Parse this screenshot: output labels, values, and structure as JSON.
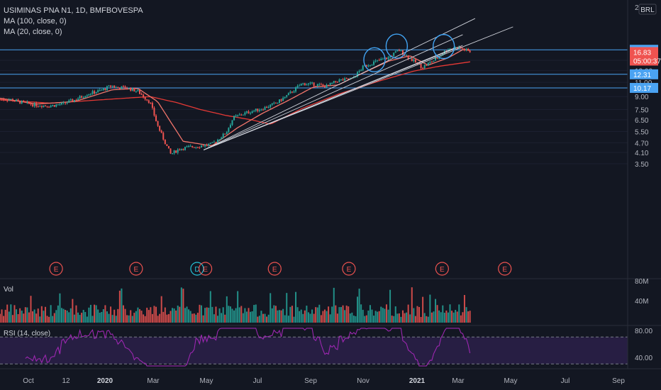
{
  "header": {
    "symbol_line": "USIMINAS PNA N1, 1D, BMFBOVESPA",
    "ma100_label": "MA (100, close, 0)",
    "ma20_label": "MA (20, close, 0)",
    "currency_badge": "BRL",
    "top_axis_label": "22"
  },
  "volume_pane": {
    "label": "Vol"
  },
  "rsi_pane": {
    "label": "RSI (14, close)"
  },
  "colors": {
    "background": "#131722",
    "up": "#26a69a",
    "down": "#ef5350",
    "ma20": "#f2756b",
    "ma100": "#e53935",
    "horizontal_line": "#4ba3f2",
    "trendline": "#d1d4dc",
    "circle": "#42a5f5",
    "rsi": "#9c27b0"
  },
  "chart_data": [
    {
      "type": "candlestick",
      "title": "USIMINAS PNA N1, 1D, BMFBOVESPA",
      "y_axis_scale": "log",
      "y_axis_ticks": [
        "15.00",
        "13.00",
        "11.00",
        "9.00",
        "7.50",
        "6.50",
        "5.50",
        "4.70",
        "4.10",
        "3.50"
      ],
      "x_axis_ticks": [
        "Oct",
        "12",
        "2020",
        "Mar",
        "May",
        "Jul",
        "Sep",
        "Nov",
        "2021",
        "Mar",
        "May",
        "Jul",
        "Sep"
      ],
      "price_badges": [
        {
          "value": "17.38",
          "kind": "horizontal-line"
        },
        {
          "value": "16.83",
          "kind": "last-price"
        },
        {
          "value": "05:00:37",
          "kind": "countdown"
        },
        {
          "value": "12.31",
          "kind": "horizontal-line"
        },
        {
          "value": "10.17",
          "kind": "horizontal-line"
        }
      ],
      "horizontal_lines": [
        17.38,
        12.31,
        10.17
      ],
      "price_path": [
        [
          "2019-09-01",
          8.7
        ],
        [
          "2019-09-15",
          8.6
        ],
        [
          "2019-10-01",
          8.2
        ],
        [
          "2019-10-15",
          8.0
        ],
        [
          "2019-11-01",
          7.9
        ],
        [
          "2019-11-15",
          8.1
        ],
        [
          "2019-12-01",
          8.6
        ],
        [
          "2019-12-15",
          9.3
        ],
        [
          "2020-01-01",
          9.8
        ],
        [
          "2020-01-15",
          10.5
        ],
        [
          "2020-01-20",
          10.2
        ],
        [
          "2020-02-01",
          10.2
        ],
        [
          "2020-02-15",
          9.7
        ],
        [
          "2020-03-01",
          8.3
        ],
        [
          "2020-03-10",
          6.0
        ],
        [
          "2020-03-20",
          4.6
        ],
        [
          "2020-03-26",
          4.0
        ],
        [
          "2020-04-05",
          4.3
        ],
        [
          "2020-04-15",
          4.4
        ],
        [
          "2020-05-01",
          4.5
        ],
        [
          "2020-05-15",
          4.6
        ],
        [
          "2020-06-01",
          5.4
        ],
        [
          "2020-06-10",
          6.7
        ],
        [
          "2020-06-20",
          7.0
        ],
        [
          "2020-07-01",
          7.3
        ],
        [
          "2020-07-15",
          7.6
        ],
        [
          "2020-08-01",
          8.2
        ],
        [
          "2020-08-15",
          9.2
        ],
        [
          "2020-09-01",
          10.8
        ],
        [
          "2020-09-15",
          10.7
        ],
        [
          "2020-10-01",
          10.4
        ],
        [
          "2020-10-15",
          11.3
        ],
        [
          "2020-11-01",
          11.5
        ],
        [
          "2020-11-15",
          13.8
        ],
        [
          "2020-12-01",
          14.8
        ],
        [
          "2020-12-15",
          15.6
        ],
        [
          "2020-12-28",
          17.3
        ],
        [
          "2021-01-10",
          15.4
        ],
        [
          "2021-01-25",
          13.6
        ],
        [
          "2021-02-10",
          15.2
        ],
        [
          "2021-02-25",
          17.6
        ],
        [
          "2021-03-10",
          18.0
        ],
        [
          "2021-03-25",
          16.8
        ]
      ],
      "ma20": [
        [
          "2019-09-01",
          8.8
        ],
        [
          "2019-10-15",
          8.1
        ],
        [
          "2019-12-01",
          8.4
        ],
        [
          "2020-01-15",
          9.9
        ],
        [
          "2020-02-15",
          10.1
        ],
        [
          "2020-03-10",
          8.4
        ],
        [
          "2020-04-10",
          4.8
        ],
        [
          "2020-05-15",
          4.5
        ],
        [
          "2020-06-15",
          5.8
        ],
        [
          "2020-07-15",
          7.1
        ],
        [
          "2020-08-15",
          8.5
        ],
        [
          "2020-09-15",
          10.3
        ],
        [
          "2020-10-15",
          10.6
        ],
        [
          "2020-11-15",
          12.6
        ],
        [
          "2020-12-15",
          14.8
        ],
        [
          "2021-01-10",
          16.0
        ],
        [
          "2021-02-01",
          14.0
        ],
        [
          "2021-02-25",
          15.5
        ],
        [
          "2021-03-15",
          17.4
        ],
        [
          "2021-03-25",
          17.3
        ]
      ],
      "ma100": [
        [
          "2019-09-01",
          8.6
        ],
        [
          "2019-11-01",
          8.2
        ],
        [
          "2020-01-01",
          8.6
        ],
        [
          "2020-03-01",
          9.0
        ],
        [
          "2020-04-01",
          8.3
        ],
        [
          "2020-05-01",
          7.5
        ],
        [
          "2020-06-01",
          6.9
        ],
        [
          "2020-07-01",
          6.5
        ],
        [
          "2020-07-25",
          6.1
        ],
        [
          "2020-09-01",
          7.6
        ],
        [
          "2020-10-15",
          9.3
        ],
        [
          "2020-12-01",
          11.1
        ],
        [
          "2021-01-15",
          12.9
        ],
        [
          "2021-02-15",
          13.8
        ],
        [
          "2021-03-25",
          14.7
        ]
      ],
      "trendlines": [
        {
          "from": [
            "2020-05-05",
            4.25
          ],
          "to": [
            "2021-03-30",
            27.0
          ]
        },
        {
          "from": [
            "2020-05-05",
            4.25
          ],
          "to": [
            "2021-03-15",
            21.5
          ]
        },
        {
          "from": [
            "2020-05-05",
            4.25
          ],
          "to": [
            "2021-03-05",
            17.8
          ]
        },
        {
          "from": [
            "2020-05-05",
            4.25
          ],
          "to": [
            "2021-05-15",
            24.0
          ]
        },
        {
          "from": [
            "2020-05-05",
            4.25
          ],
          "to": [
            "2021-03-15",
            18.5
          ]
        }
      ],
      "highlight_circles": [
        {
          "date": "2020-11-28",
          "price": 15.1
        },
        {
          "date": "2020-12-25",
          "price": 18.3
        },
        {
          "date": "2021-02-20",
          "price": 18.2
        }
      ],
      "event_markers": [
        {
          "date": "2019-11-08",
          "label": "E"
        },
        {
          "date": "2020-02-13",
          "label": "E"
        },
        {
          "date": "2020-04-27",
          "label": "D"
        },
        {
          "date": "2020-05-07",
          "label": "E"
        },
        {
          "date": "2020-07-30",
          "label": "E"
        },
        {
          "date": "2020-10-28",
          "label": "E"
        },
        {
          "date": "2021-02-18",
          "label": "E"
        },
        {
          "date": "2021-05-05",
          "label": "E"
        }
      ]
    },
    {
      "type": "bar",
      "title": "Vol",
      "y_axis_ticks": [
        "80M",
        "40M"
      ],
      "ylim": [
        0,
        88
      ]
    },
    {
      "type": "line",
      "title": "RSI (14, close)",
      "y_axis_ticks": [
        "80.00",
        "40.00"
      ],
      "bands": [
        70,
        30
      ],
      "ylim": [
        25,
        85
      ]
    }
  ]
}
